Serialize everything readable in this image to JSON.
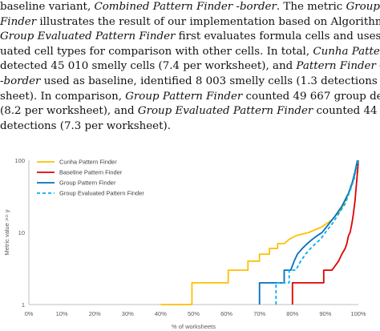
{
  "paragraph": {
    "lines": [
      [
        {
          "t": "baseline variant, ",
          "i": false
        },
        {
          "t": "Combined Pattern Finder -border",
          "i": true
        },
        {
          "t": ". The metric ",
          "i": false
        },
        {
          "t": "Group Pattern",
          "i": true
        }
      ],
      [
        {
          "t": "Finder",
          "i": true
        },
        {
          "t": " illustrates the result of our implementation based on Algorithm 2. The",
          "i": false
        }
      ],
      [
        {
          "t": "Group Evaluated Pattern Finder",
          "i": true
        },
        {
          "t": " first evaluates formula cells and uses the eval-",
          "i": false
        }
      ],
      [
        {
          "t": "uated cell types for comparison with other cells. In total, ",
          "i": false
        },
        {
          "t": "Cunha Pattern Finder",
          "i": true
        }
      ],
      [
        {
          "t": "detected 45 010 smelly cells (7.4 per worksheet), and ",
          "i": false
        },
        {
          "t": "Pattern Finder Combined",
          "i": true
        }
      ],
      [
        {
          "t": "-border",
          "i": true
        },
        {
          "t": " used as baseline, identified 8 003 smelly cells (1.3 detections per work-",
          "i": false
        }
      ],
      [
        {
          "t": "sheet). In comparison, ",
          "i": false
        },
        {
          "t": "Group Pattern Finder",
          "i": true
        },
        {
          "t": " counted 49 667 group detections,",
          "i": false
        }
      ],
      [
        {
          "t": "(8.2 per worksheet), and ",
          "i": false
        },
        {
          "t": "Group Evaluated Pattern Finder",
          "i": true
        },
        {
          "t": " counted 44 453 group",
          "i": false
        }
      ],
      [
        {
          "t": "detections (7.3 per worksheet).",
          "i": false
        }
      ]
    ]
  },
  "chart_data": {
    "type": "line",
    "xlabel": "% of worksheets",
    "ylabel": "Metric value >= y",
    "x_ticks": [
      "0%",
      "10%",
      "20%",
      "30%",
      "40%",
      "50%",
      "60%",
      "70%",
      "80%",
      "90%",
      "100%"
    ],
    "y_ticks": [
      "1",
      "10",
      "100"
    ],
    "xlim": [
      0,
      100
    ],
    "ylim": [
      1,
      100
    ],
    "y_scale": "log",
    "grid": false,
    "legend_position": "top-left",
    "series": [
      {
        "name": "Cunha Pattern Finder",
        "color": "#FFC000",
        "dash": false,
        "points": [
          [
            40,
            1
          ],
          [
            49.5,
            1
          ],
          [
            49.5,
            2
          ],
          [
            60.5,
            2
          ],
          [
            60.5,
            3
          ],
          [
            66.5,
            3
          ],
          [
            66.5,
            4
          ],
          [
            70,
            4
          ],
          [
            70,
            5
          ],
          [
            73,
            5
          ],
          [
            73,
            6
          ],
          [
            75.5,
            6
          ],
          [
            75.5,
            7
          ],
          [
            77.5,
            7
          ],
          [
            79,
            8
          ],
          [
            81,
            9
          ],
          [
            85,
            10
          ],
          [
            89,
            12
          ],
          [
            92,
            15
          ],
          [
            94.5,
            20
          ],
          [
            96.5,
            30
          ],
          [
            98,
            45
          ],
          [
            99.2,
            70
          ],
          [
            99.8,
            100
          ]
        ]
      },
      {
        "name": "Baseline Pattern Finder",
        "color": "#E00000",
        "dash": false,
        "points": [
          [
            80,
            1
          ],
          [
            80,
            2
          ],
          [
            89.5,
            2
          ],
          [
            89.5,
            3
          ],
          [
            92,
            3
          ],
          [
            94,
            4
          ],
          [
            95,
            5
          ],
          [
            96,
            6
          ],
          [
            96.5,
            7
          ],
          [
            97,
            9
          ],
          [
            97.5,
            10
          ],
          [
            98,
            13
          ],
          [
            98.5,
            18
          ],
          [
            99,
            28
          ],
          [
            99.4,
            45
          ],
          [
            99.8,
            75
          ],
          [
            100,
            100
          ]
        ]
      },
      {
        "name": "Group Pattern Finder",
        "color": "#0070C0",
        "dash": false,
        "points": [
          [
            70,
            1
          ],
          [
            70,
            2
          ],
          [
            77.5,
            2
          ],
          [
            77.5,
            3
          ],
          [
            79.5,
            3
          ],
          [
            80.5,
            4
          ],
          [
            81.5,
            5
          ],
          [
            83,
            6
          ],
          [
            84.5,
            7
          ],
          [
            86,
            8
          ],
          [
            87.5,
            9
          ],
          [
            89,
            10
          ],
          [
            91,
            13
          ],
          [
            93,
            17
          ],
          [
            95,
            23
          ],
          [
            97,
            35
          ],
          [
            98.2,
            50
          ],
          [
            99,
            70
          ],
          [
            99.7,
            100
          ]
        ]
      },
      {
        "name": "Group Evaluated Pattern Finder",
        "color": "#00B0F0",
        "dash": true,
        "points": [
          [
            75,
            1
          ],
          [
            75,
            2
          ],
          [
            79,
            2
          ],
          [
            79,
            3
          ],
          [
            81,
            3
          ],
          [
            82.5,
            4
          ],
          [
            84,
            5
          ],
          [
            85.5,
            6
          ],
          [
            87,
            7
          ],
          [
            88.5,
            8
          ],
          [
            90,
            10
          ],
          [
            92,
            13
          ],
          [
            94,
            18
          ],
          [
            96,
            25
          ],
          [
            97.5,
            38
          ],
          [
            98.7,
            55
          ],
          [
            99.5,
            80
          ],
          [
            100,
            100
          ]
        ]
      }
    ]
  }
}
